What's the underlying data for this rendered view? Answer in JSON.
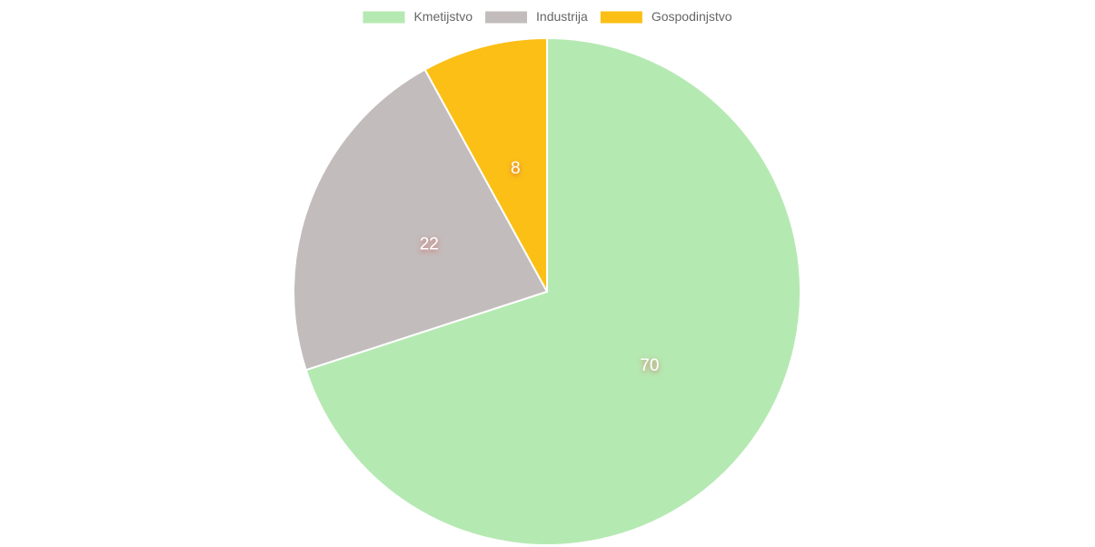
{
  "chart_data": {
    "type": "pie",
    "categories": [
      "Kmetijstvo",
      "Industrija",
      "Gospodinjstvo"
    ],
    "values": [
      70,
      22,
      8
    ],
    "colors": [
      "#b5e9b2",
      "#c3bcbc",
      "#fbbf16"
    ],
    "legend": "top"
  }
}
